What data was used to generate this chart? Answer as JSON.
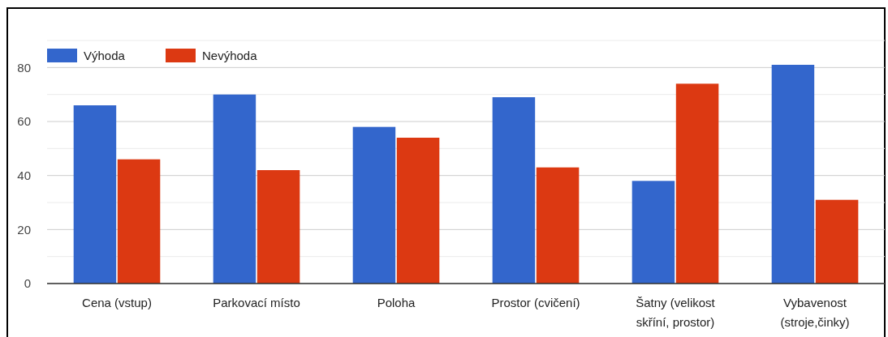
{
  "chart_data": {
    "type": "bar",
    "categories": [
      "Cena (vstup)",
      "Parkovací místo",
      "Poloha",
      "Prostor (cvičení)",
      "Šatny (velikost skříní, prostor)",
      "Vybavenost (stroje,činky)"
    ],
    "series": [
      {
        "name": "Výhoda",
        "color": "#3366cc",
        "values": [
          66,
          70,
          58,
          69,
          38,
          81
        ]
      },
      {
        "name": "Nevýhoda",
        "color": "#dc3912",
        "values": [
          46,
          42,
          54,
          43,
          74,
          31
        ]
      }
    ],
    "ylim": [
      0,
      90
    ],
    "yticks": [
      0,
      {
        "value": 10,
        "label": null
      },
      20,
      {
        "value": 30,
        "label": null
      },
      40,
      {
        "value": 50,
        "label": null
      },
      60,
      {
        "value": 70,
        "label": null
      },
      80,
      {
        "value": 90,
        "label": null
      }
    ],
    "grid": "y",
    "legend": "top left"
  }
}
